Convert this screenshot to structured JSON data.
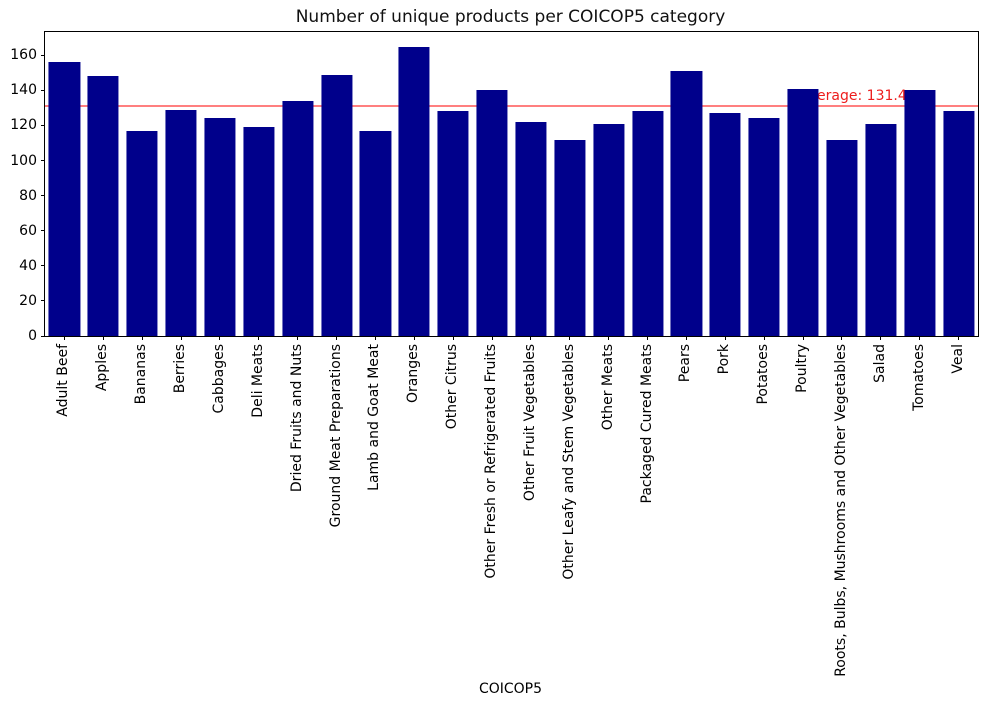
{
  "chart_data": {
    "type": "bar",
    "title": "Number of unique products per COICOP5 category",
    "xlabel": "COICOP5",
    "ylabel": "",
    "categories": [
      "Adult Beef",
      "Apples",
      "Bananas",
      "Berries",
      "Cabbages",
      "Deli Meats",
      "Dried Fruits and Nuts",
      "Ground Meat Preparations",
      "Lamb and Goat Meat",
      "Oranges",
      "Other Citrus",
      "Other Fresh or Refrigerated Fruits",
      "Other Fruit Vegetables",
      "Other Leafy and Stem Vegetables",
      "Other Meats",
      "Packaged Cured Meats",
      "Pears",
      "Pork",
      "Potatoes",
      "Poultry",
      "Roots, Bulbs, Mushrooms and Other Vegetables",
      "Salad",
      "Tomatoes",
      "Veal"
    ],
    "values": [
      156,
      148,
      117,
      129,
      124,
      119,
      134,
      149,
      117,
      165,
      128,
      140,
      122,
      112,
      121,
      128,
      151,
      127,
      124,
      141,
      112,
      121,
      140,
      128
    ],
    "yticks": [
      0,
      20,
      40,
      60,
      80,
      100,
      120,
      140,
      160
    ],
    "ylim": [
      0,
      173.3
    ],
    "grid": false,
    "legend": null,
    "bar_color": "#00008b",
    "average_line": {
      "value": 131.4,
      "label": "Average: 131.4",
      "line_color": "rgba(255,0,0,0.5)",
      "label_color": "#ed1c1c"
    }
  }
}
